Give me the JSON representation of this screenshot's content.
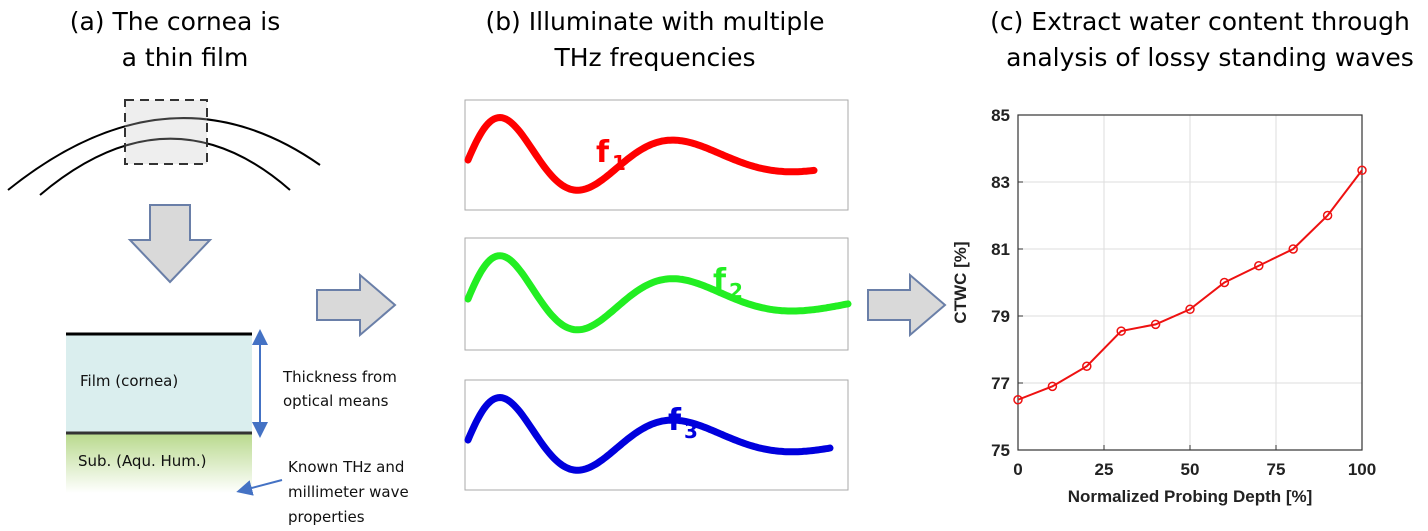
{
  "panel_a": {
    "title": [
      "(a) The cornea is",
      "a thin film"
    ],
    "film_label": "Film (cornea)",
    "substrate_label": "Sub. (Aqu. Hum.)",
    "thickness_note": [
      "Thickness from",
      "optical means"
    ],
    "known_note": [
      "Known THz and",
      "millimeter wave",
      "properties"
    ]
  },
  "panel_b": {
    "title": [
      "(b) Illuminate with multiple",
      "THz frequencies"
    ],
    "waves": [
      {
        "label": "f",
        "sub": "1",
        "color": "#ff0000"
      },
      {
        "label": "f",
        "sub": "2",
        "color": "#22ee22"
      },
      {
        "label": "f",
        "sub": "3",
        "color": "#0000dd"
      }
    ]
  },
  "panel_c": {
    "title": [
      "(c) Extract water content through",
      "analysis of lossy standing waves"
    ],
    "chart": {
      "type": "line",
      "x_label": "Normalized Probing Depth [%]",
      "y_label": "CTWC [%]",
      "color": "#ee1111",
      "grid": true,
      "x": [
        0,
        10,
        20,
        30,
        40,
        50,
        60,
        70,
        80,
        90,
        100
      ],
      "values": [
        76.5,
        76.9,
        77.5,
        78.55,
        78.75,
        79.2,
        80.0,
        80.5,
        81.0,
        82.0,
        83.35
      ],
      "xlim": [
        0,
        100
      ],
      "xticks": [
        0,
        25,
        50,
        75,
        100
      ],
      "ylim": [
        75,
        85
      ],
      "yticks": [
        75,
        77,
        79,
        81,
        83,
        85
      ]
    }
  }
}
